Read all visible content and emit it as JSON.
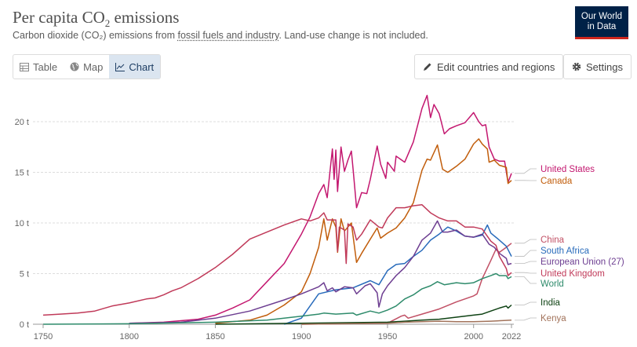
{
  "header": {
    "title_main": "Per capita CO",
    "title_sub": "2",
    "title_end": " emissions",
    "subtitle_pre": "Carbon dioxide (CO₂) emissions from ",
    "subtitle_link": "fossil fuels and industry",
    "subtitle_post": ". Land-use change is not included.",
    "logo_line1": "Our World",
    "logo_line2": "in Data"
  },
  "toolbar": {
    "tabs": [
      {
        "label": "Table",
        "icon": "table-icon"
      },
      {
        "label": "Map",
        "icon": "globe-icon"
      },
      {
        "label": "Chart",
        "icon": "line-chart-icon",
        "active": true
      }
    ],
    "edit_label": "Edit countries and regions",
    "settings_label": "Settings"
  },
  "chart_data": {
    "type": "line",
    "title": "Per capita CO₂ emissions",
    "xlabel": "",
    "ylabel": "",
    "xlim": [
      1750,
      2022
    ],
    "ylim": [
      0,
      22.5
    ],
    "yticks": [
      0,
      5,
      10,
      15,
      20
    ],
    "ytick_labels": [
      "0 t",
      "5 t",
      "10 t",
      "15 t",
      "20 t"
    ],
    "xticks": [
      1750,
      1800,
      1850,
      1900,
      1950,
      2000,
      2022
    ],
    "xtick_labels": [
      "1750",
      "1800",
      "1850",
      "1900",
      "1950",
      "2000",
      "2022"
    ],
    "grid": true,
    "legend_position": "right-end-labels",
    "series": [
      {
        "name": "United States",
        "color": "#c3176f",
        "points": [
          [
            1800,
            0.1
          ],
          [
            1820,
            0.2
          ],
          [
            1840,
            0.5
          ],
          [
            1850,
            0.9
          ],
          [
            1860,
            1.6
          ],
          [
            1870,
            2.4
          ],
          [
            1880,
            4.2
          ],
          [
            1890,
            6.0
          ],
          [
            1900,
            8.9
          ],
          [
            1905,
            10.6
          ],
          [
            1910,
            12.9
          ],
          [
            1913,
            13.8
          ],
          [
            1915,
            12.5
          ],
          [
            1918,
            17.3
          ],
          [
            1919,
            14.3
          ],
          [
            1920,
            17.2
          ],
          [
            1921,
            13.1
          ],
          [
            1923,
            17.5
          ],
          [
            1925,
            15.1
          ],
          [
            1927,
            16.2
          ],
          [
            1929,
            17.1
          ],
          [
            1930,
            15.3
          ],
          [
            1932,
            11.5
          ],
          [
            1935,
            13.0
          ],
          [
            1938,
            12.9
          ],
          [
            1940,
            14.3
          ],
          [
            1944,
            17.6
          ],
          [
            1946,
            15.8
          ],
          [
            1949,
            14.4
          ],
          [
            1950,
            16.0
          ],
          [
            1954,
            15.1
          ],
          [
            1955,
            16.6
          ],
          [
            1960,
            16.0
          ],
          [
            1965,
            18.0
          ],
          [
            1970,
            21.3
          ],
          [
            1973,
            22.6
          ],
          [
            1975,
            20.4
          ],
          [
            1977,
            21.7
          ],
          [
            1980,
            20.8
          ],
          [
            1983,
            18.8
          ],
          [
            1986,
            19.3
          ],
          [
            1990,
            19.6
          ],
          [
            1995,
            19.9
          ],
          [
            2000,
            20.9
          ],
          [
            2003,
            20.0
          ],
          [
            2005,
            19.6
          ],
          [
            2007,
            19.7
          ],
          [
            2009,
            17.5
          ],
          [
            2012,
            16.3
          ],
          [
            2015,
            16.1
          ],
          [
            2018,
            16.1
          ],
          [
            2020,
            14.0
          ],
          [
            2022,
            14.9
          ]
        ]
      },
      {
        "name": "Canada",
        "color": "#c15d0b",
        "points": [
          [
            1850,
            0.1
          ],
          [
            1870,
            0.4
          ],
          [
            1880,
            0.9
          ],
          [
            1890,
            1.9
          ],
          [
            1900,
            3.2
          ],
          [
            1905,
            5.0
          ],
          [
            1910,
            7.6
          ],
          [
            1913,
            10.4
          ],
          [
            1915,
            8.3
          ],
          [
            1918,
            10.4
          ],
          [
            1920,
            9.6
          ],
          [
            1921,
            7.1
          ],
          [
            1923,
            10.4
          ],
          [
            1925,
            9.2
          ],
          [
            1929,
            10.0
          ],
          [
            1932,
            6.1
          ],
          [
            1935,
            7.0
          ],
          [
            1940,
            8.4
          ],
          [
            1944,
            9.5
          ],
          [
            1946,
            8.5
          ],
          [
            1950,
            9.0
          ],
          [
            1955,
            9.5
          ],
          [
            1960,
            10.5
          ],
          [
            1965,
            12.0
          ],
          [
            1970,
            15.2
          ],
          [
            1973,
            16.3
          ],
          [
            1975,
            16.2
          ],
          [
            1979,
            17.7
          ],
          [
            1982,
            15.3
          ],
          [
            1985,
            15.0
          ],
          [
            1990,
            15.6
          ],
          [
            1995,
            16.3
          ],
          [
            2000,
            17.8
          ],
          [
            2003,
            18.3
          ],
          [
            2005,
            17.8
          ],
          [
            2008,
            17.3
          ],
          [
            2009,
            16.0
          ],
          [
            2012,
            16.2
          ],
          [
            2015,
            15.7
          ],
          [
            2019,
            15.5
          ],
          [
            2020,
            13.9
          ],
          [
            2022,
            14.2
          ]
        ]
      },
      {
        "name": "China",
        "color": "#c15065",
        "points": [
          [
            1900,
            0.0
          ],
          [
            1950,
            0.1
          ],
          [
            1958,
            0.8
          ],
          [
            1960,
            0.9
          ],
          [
            1962,
            0.6
          ],
          [
            1970,
            1.0
          ],
          [
            1980,
            1.5
          ],
          [
            1990,
            2.2
          ],
          [
            2000,
            2.8
          ],
          [
            2002,
            3.0
          ],
          [
            2005,
            4.5
          ],
          [
            2010,
            6.3
          ],
          [
            2013,
            7.4
          ],
          [
            2015,
            7.1
          ],
          [
            2019,
            7.6
          ],
          [
            2022,
            8.0
          ]
        ]
      },
      {
        "name": "South Africa",
        "color": "#286bbb",
        "points": [
          [
            1890,
            0.0
          ],
          [
            1900,
            0.6
          ],
          [
            1905,
            1.8
          ],
          [
            1910,
            3.0
          ],
          [
            1920,
            3.4
          ],
          [
            1930,
            3.6
          ],
          [
            1940,
            4.3
          ],
          [
            1945,
            3.9
          ],
          [
            1950,
            5.3
          ],
          [
            1955,
            5.9
          ],
          [
            1960,
            6.0
          ],
          [
            1965,
            6.7
          ],
          [
            1970,
            7.3
          ],
          [
            1975,
            8.3
          ],
          [
            1980,
            8.9
          ],
          [
            1985,
            9.6
          ],
          [
            1990,
            9.2
          ],
          [
            1995,
            8.7
          ],
          [
            2000,
            8.6
          ],
          [
            2005,
            8.8
          ],
          [
            2008,
            9.8
          ],
          [
            2010,
            9.0
          ],
          [
            2015,
            8.3
          ],
          [
            2019,
            7.7
          ],
          [
            2022,
            6.7
          ]
        ]
      },
      {
        "name": "European Union (27)",
        "color": "#6d3e91",
        "points": [
          [
            1800,
            0.1
          ],
          [
            1830,
            0.2
          ],
          [
            1850,
            0.6
          ],
          [
            1870,
            1.3
          ],
          [
            1890,
            2.4
          ],
          [
            1900,
            3.0
          ],
          [
            1910,
            3.7
          ],
          [
            1913,
            4.1
          ],
          [
            1915,
            3.3
          ],
          [
            1918,
            3.6
          ],
          [
            1920,
            3.2
          ],
          [
            1925,
            3.7
          ],
          [
            1930,
            3.6
          ],
          [
            1932,
            3.0
          ],
          [
            1937,
            3.8
          ],
          [
            1940,
            4.0
          ],
          [
            1944,
            3.1
          ],
          [
            1945,
            1.7
          ],
          [
            1947,
            3.0
          ],
          [
            1950,
            3.8
          ],
          [
            1955,
            4.8
          ],
          [
            1960,
            5.6
          ],
          [
            1965,
            6.7
          ],
          [
            1970,
            8.3
          ],
          [
            1975,
            9.0
          ],
          [
            1979,
            10.2
          ],
          [
            1982,
            9.1
          ],
          [
            1985,
            9.1
          ],
          [
            1990,
            9.3
          ],
          [
            1995,
            8.7
          ],
          [
            2000,
            8.6
          ],
          [
            2005,
            8.9
          ],
          [
            2009,
            7.9
          ],
          [
            2012,
            7.6
          ],
          [
            2015,
            7.0
          ],
          [
            2019,
            6.5
          ],
          [
            2020,
            5.9
          ],
          [
            2022,
            6.0
          ]
        ]
      },
      {
        "name": "United Kingdom",
        "color": "#c03a59",
        "points": [
          [
            1750,
            0.9
          ],
          [
            1760,
            1.0
          ],
          [
            1770,
            1.1
          ],
          [
            1780,
            1.3
          ],
          [
            1790,
            1.8
          ],
          [
            1800,
            2.1
          ],
          [
            1810,
            2.5
          ],
          [
            1815,
            2.6
          ],
          [
            1820,
            2.9
          ],
          [
            1825,
            3.3
          ],
          [
            1830,
            3.6
          ],
          [
            1840,
            4.5
          ],
          [
            1850,
            5.6
          ],
          [
            1860,
            6.9
          ],
          [
            1870,
            8.4
          ],
          [
            1880,
            9.1
          ],
          [
            1890,
            9.8
          ],
          [
            1900,
            10.4
          ],
          [
            1905,
            10.2
          ],
          [
            1910,
            10.5
          ],
          [
            1913,
            11.0
          ],
          [
            1915,
            10.3
          ],
          [
            1920,
            10.3
          ],
          [
            1921,
            7.2
          ],
          [
            1922,
            9.6
          ],
          [
            1925,
            9.3
          ],
          [
            1926,
            6.0
          ],
          [
            1927,
            9.9
          ],
          [
            1930,
            9.6
          ],
          [
            1932,
            8.3
          ],
          [
            1935,
            8.9
          ],
          [
            1940,
            10.3
          ],
          [
            1945,
            9.6
          ],
          [
            1947,
            9.5
          ],
          [
            1950,
            10.5
          ],
          [
            1955,
            11.5
          ],
          [
            1960,
            11.5
          ],
          [
            1965,
            11.7
          ],
          [
            1970,
            11.8
          ],
          [
            1975,
            11.0
          ],
          [
            1980,
            10.5
          ],
          [
            1985,
            10.2
          ],
          [
            1990,
            10.2
          ],
          [
            1995,
            9.6
          ],
          [
            2000,
            9.6
          ],
          [
            2005,
            9.4
          ],
          [
            2010,
            8.2
          ],
          [
            2013,
            7.8
          ],
          [
            2015,
            6.7
          ],
          [
            2019,
            5.5
          ],
          [
            2020,
            4.8
          ],
          [
            2022,
            5.1
          ]
        ]
      },
      {
        "name": "World",
        "color": "#2e8b6b",
        "points": [
          [
            1750,
            0.0
          ],
          [
            1800,
            0.05
          ],
          [
            1850,
            0.2
          ],
          [
            1880,
            0.4
          ],
          [
            1900,
            0.8
          ],
          [
            1910,
            1.0
          ],
          [
            1913,
            1.1
          ],
          [
            1920,
            1.0
          ],
          [
            1930,
            1.1
          ],
          [
            1932,
            0.9
          ],
          [
            1940,
            1.3
          ],
          [
            1945,
            1.1
          ],
          [
            1950,
            1.4
          ],
          [
            1955,
            1.8
          ],
          [
            1960,
            2.5
          ],
          [
            1965,
            2.9
          ],
          [
            1970,
            3.5
          ],
          [
            1975,
            3.8
          ],
          [
            1979,
            4.2
          ],
          [
            1983,
            3.9
          ],
          [
            1990,
            4.1
          ],
          [
            1995,
            4.0
          ],
          [
            2000,
            4.1
          ],
          [
            2005,
            4.5
          ],
          [
            2010,
            4.8
          ],
          [
            2013,
            5.0
          ],
          [
            2015,
            4.8
          ],
          [
            2019,
            4.8
          ],
          [
            2020,
            4.5
          ],
          [
            2022,
            4.7
          ]
        ]
      },
      {
        "name": "India",
        "color": "#0e4213",
        "points": [
          [
            1850,
            0.0
          ],
          [
            1900,
            0.1
          ],
          [
            1950,
            0.2
          ],
          [
            1960,
            0.3
          ],
          [
            1970,
            0.4
          ],
          [
            1980,
            0.5
          ],
          [
            1990,
            0.7
          ],
          [
            2000,
            0.9
          ],
          [
            2005,
            1.0
          ],
          [
            2010,
            1.3
          ],
          [
            2015,
            1.6
          ],
          [
            2019,
            1.8
          ],
          [
            2020,
            1.6
          ],
          [
            2022,
            1.9
          ]
        ]
      },
      {
        "name": "Kenya",
        "color": "#a2735b",
        "points": [
          [
            1900,
            0.0
          ],
          [
            1950,
            0.1
          ],
          [
            1960,
            0.2
          ],
          [
            1970,
            0.25
          ],
          [
            1980,
            0.3
          ],
          [
            1990,
            0.25
          ],
          [
            2000,
            0.25
          ],
          [
            2010,
            0.3
          ],
          [
            2022,
            0.4
          ]
        ]
      }
    ],
    "end_labels": [
      {
        "name": "United States",
        "color": "#c3176f"
      },
      {
        "name": "Canada",
        "color": "#c15d0b"
      },
      {
        "name": "China",
        "color": "#c15065"
      },
      {
        "name": "South Africa",
        "color": "#286bbb"
      },
      {
        "name": "European Union (27)",
        "color": "#6d3e91"
      },
      {
        "name": "United Kingdom",
        "color": "#c03a59"
      },
      {
        "name": "World",
        "color": "#2e8b6b"
      },
      {
        "name": "India",
        "color": "#0e4213"
      },
      {
        "name": "Kenya",
        "color": "#a2735b"
      }
    ]
  }
}
